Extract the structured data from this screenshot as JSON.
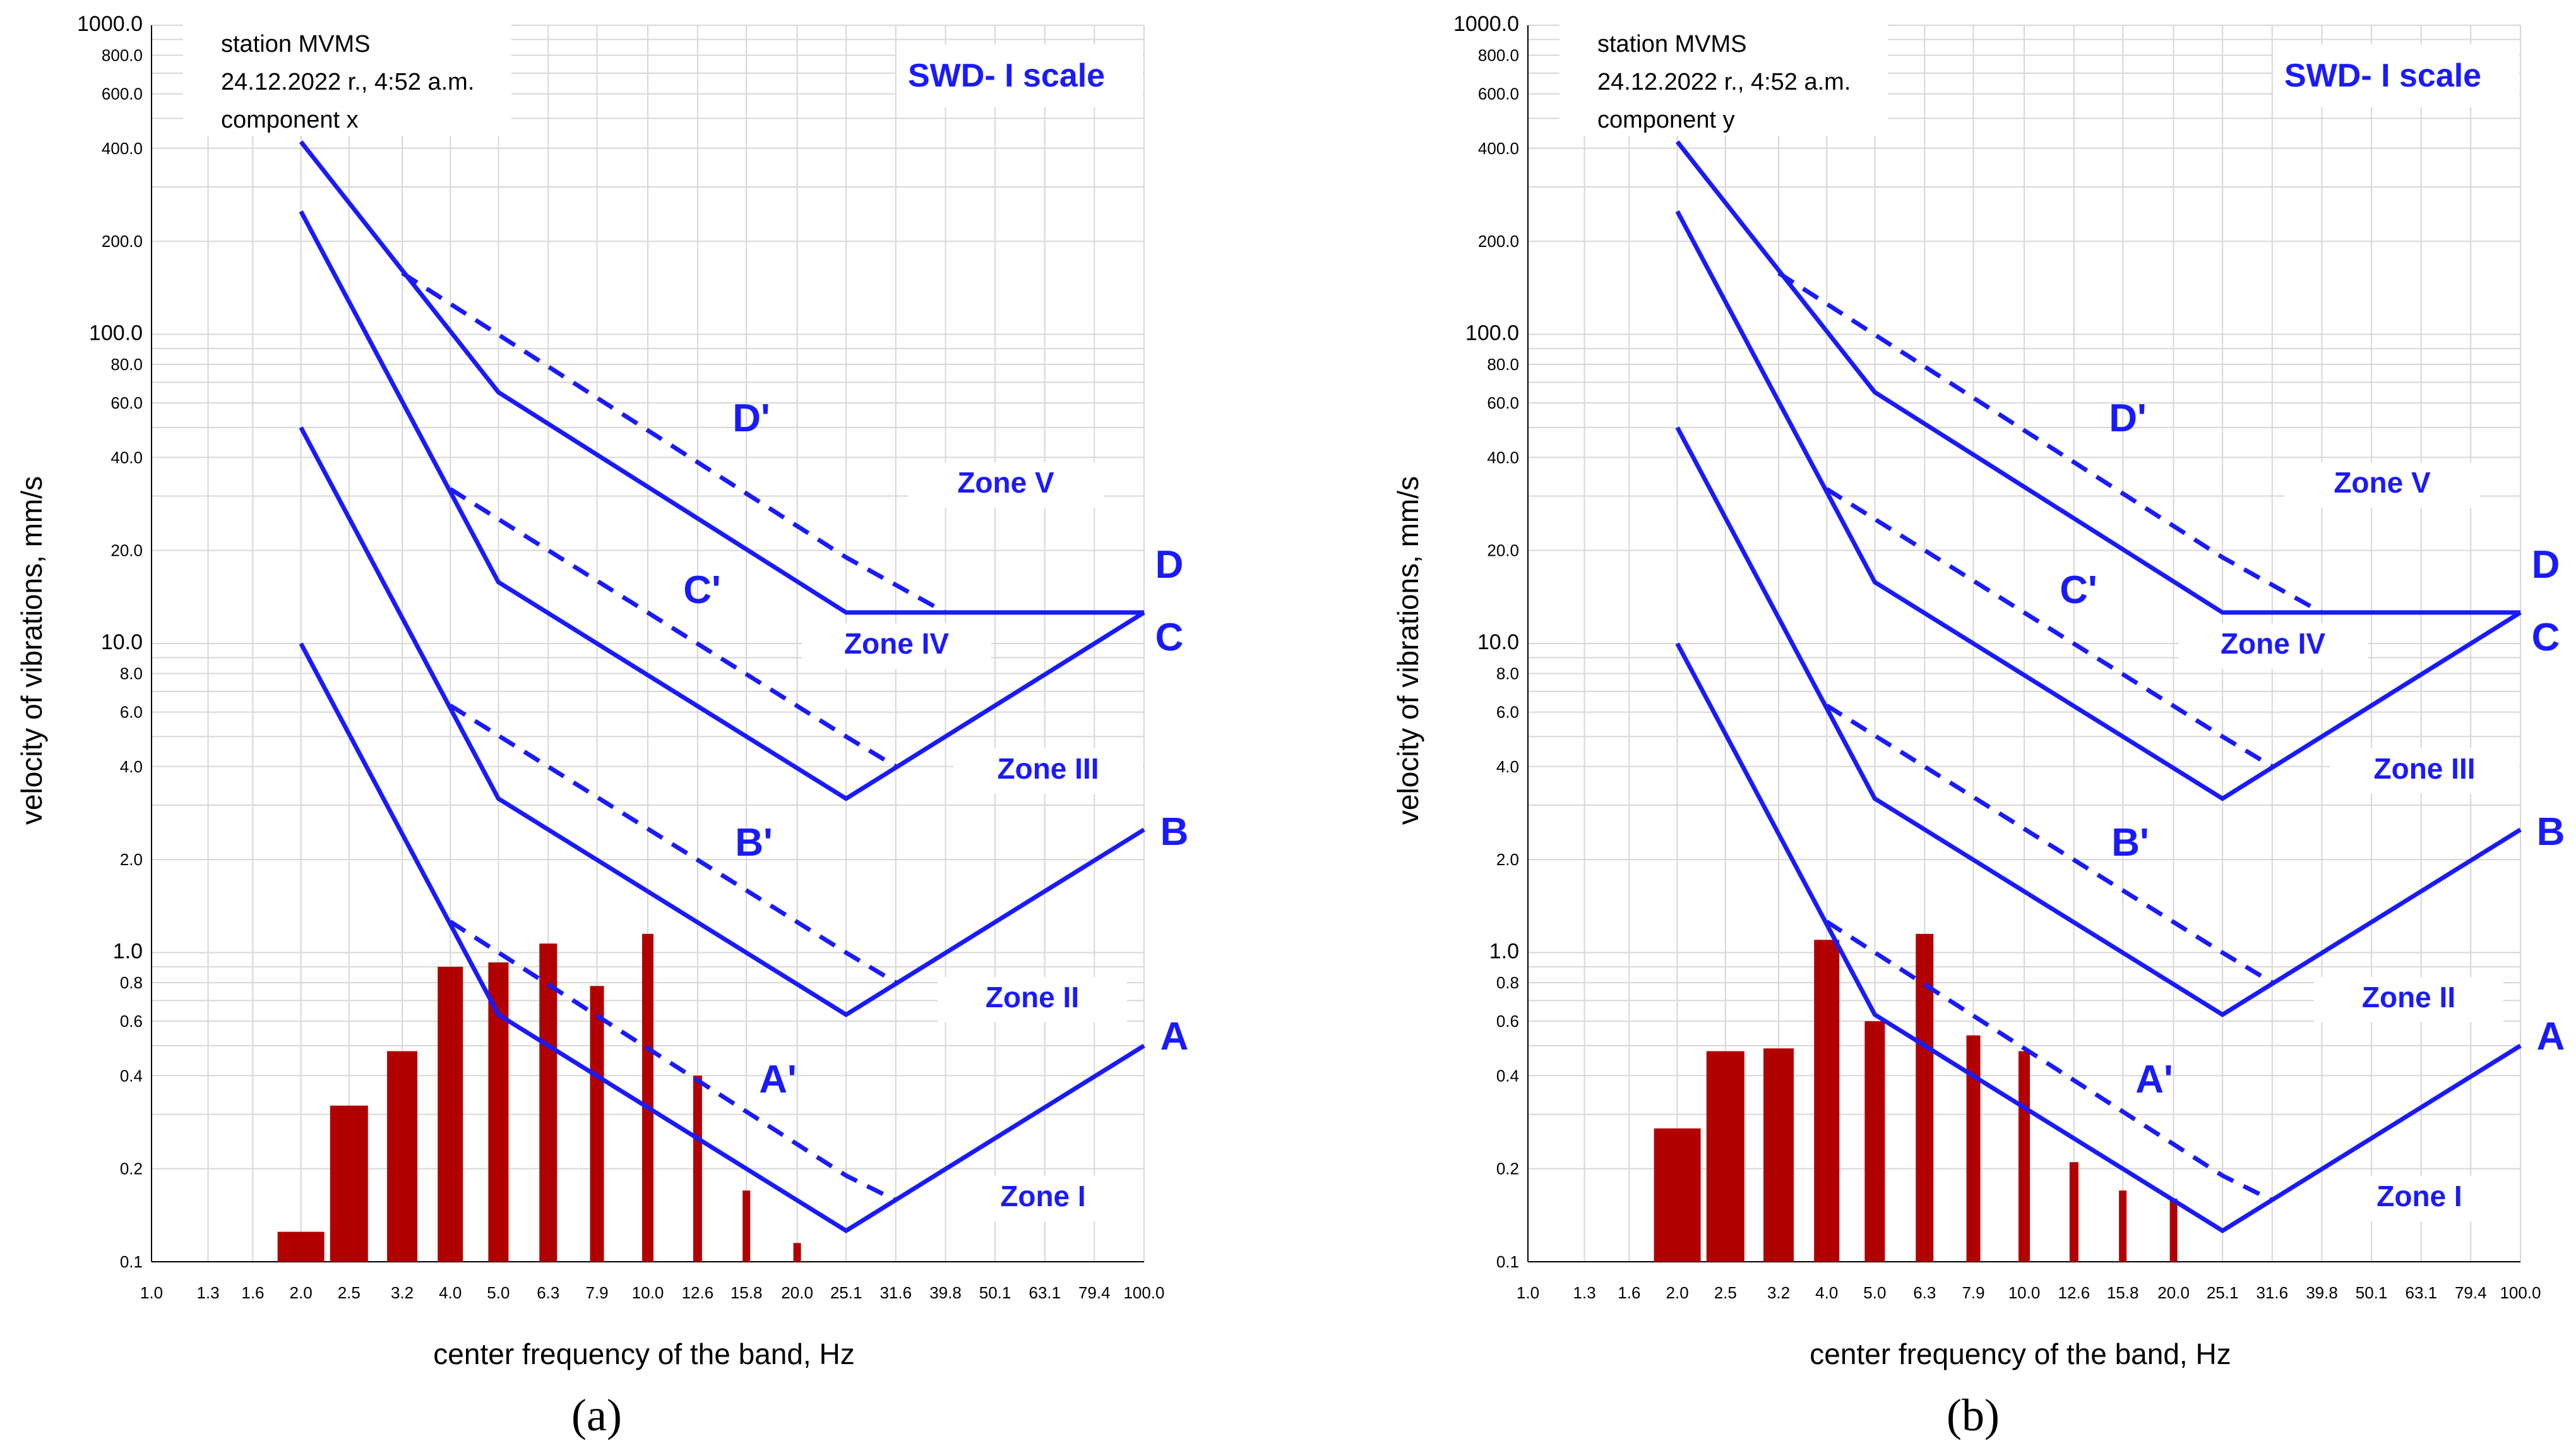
{
  "chart_data": [
    {
      "type": "bar",
      "panel_label": "(a)",
      "title": "SWD- I scale",
      "info": [
        "station MVMS",
        "24.12.2022 r., 4:52 a.m.",
        "component x"
      ],
      "xlabel": "center frequency of the band, Hz",
      "ylabel": "velocity of vibrations, mm/s",
      "x_scale": "log",
      "y_scale": "log",
      "xlim": [
        1.0,
        100.0
      ],
      "ylim": [
        0.1,
        1000.0
      ],
      "grid": true,
      "x_tick_labels": [
        "1.0",
        "1.3",
        "1.6",
        "2.0",
        "2.5",
        "3.2",
        "4.0",
        "5.0",
        "6.3",
        "7.9",
        "10.0",
        "12.6",
        "15.8",
        "20.0",
        "25.1",
        "31.6",
        "39.8",
        "50.1",
        "63.1",
        "79.4",
        "100.0"
      ],
      "y_tick_labels": [
        "0.1",
        "0.2",
        "0.4",
        "0.6",
        "0.8",
        "1.0",
        "2.0",
        "4.0",
        "6.0",
        "8.0",
        "10.0",
        "20.0",
        "40.0",
        "60.0",
        "80.0",
        "100.0",
        "200.0",
        "400.0",
        "600.0",
        "800.0",
        "1000.0"
      ],
      "bars": [
        {
          "x": 2.0,
          "value": 0.125
        },
        {
          "x": 2.5,
          "value": 0.32
        },
        {
          "x": 3.2,
          "value": 0.48
        },
        {
          "x": 4.0,
          "value": 0.9
        },
        {
          "x": 5.0,
          "value": 0.93
        },
        {
          "x": 6.3,
          "value": 1.07
        },
        {
          "x": 7.9,
          "value": 0.78
        },
        {
          "x": 10.0,
          "value": 1.15
        },
        {
          "x": 12.6,
          "value": 0.4
        },
        {
          "x": 15.8,
          "value": 0.17
        },
        {
          "x": 20.0,
          "value": 0.115
        }
      ],
      "limit_lines": [
        {
          "name": "A",
          "points": [
            [
              2.0,
              10.0
            ],
            [
              5.0,
              0.63
            ],
            [
              25.1,
              0.126
            ],
            [
              100.0,
              0.5
            ]
          ]
        },
        {
          "name": "B",
          "points": [
            [
              2.0,
              50.0
            ],
            [
              5.0,
              3.15
            ],
            [
              25.1,
              0.63
            ],
            [
              100.0,
              2.5
            ]
          ]
        },
        {
          "name": "C",
          "points": [
            [
              2.0,
              250.0
            ],
            [
              5.0,
              15.8
            ],
            [
              25.1,
              3.15
            ],
            [
              100.0,
              12.6
            ]
          ]
        },
        {
          "name": "D",
          "points": [
            [
              2.0,
              420.0
            ],
            [
              5.0,
              65.0
            ],
            [
              25.1,
              12.6
            ],
            [
              100.0,
              12.6
            ]
          ]
        },
        {
          "name": "A'",
          "points": [
            [
              4.0,
              1.26
            ],
            [
              25.1,
              0.19
            ],
            [
              31.6,
              0.158
            ]
          ]
        },
        {
          "name": "B'",
          "points": [
            [
              4.0,
              6.3
            ],
            [
              25.1,
              1.0
            ],
            [
              31.6,
              0.8
            ]
          ]
        },
        {
          "name": "C'",
          "points": [
            [
              4.0,
              31.6
            ],
            [
              25.1,
              5.0
            ],
            [
              31.6,
              4.0
            ]
          ]
        },
        {
          "name": "D'",
          "points": [
            [
              3.2,
              158.0
            ],
            [
              25.1,
              19.0
            ],
            [
              39.8,
              12.6
            ]
          ]
        }
      ],
      "curve_labels": [
        "A",
        "B",
        "C",
        "D",
        "A'",
        "B'",
        "C'",
        "D'"
      ],
      "zones": [
        "Zone I",
        "Zone II",
        "Zone III",
        "Zone IV",
        "Zone V"
      ]
    },
    {
      "type": "bar",
      "panel_label": "(b)",
      "title": "SWD- I scale",
      "info": [
        "station MVMS",
        "24.12.2022 r., 4:52 a.m.",
        "component y"
      ],
      "xlabel": "center frequency of the band, Hz",
      "ylabel": "velocity of vibrations, mm/s",
      "x_scale": "log",
      "y_scale": "log",
      "xlim": [
        1.0,
        100.0
      ],
      "ylim": [
        0.1,
        1000.0
      ],
      "grid": true,
      "x_tick_labels": [
        "1.0",
        "1.3",
        "1.6",
        "2.0",
        "2.5",
        "3.2",
        "4.0",
        "5.0",
        "6.3",
        "7.9",
        "10.0",
        "12.6",
        "15.8",
        "20.0",
        "25.1",
        "31.6",
        "39.8",
        "50.1",
        "63.1",
        "79.4",
        "100.0"
      ],
      "y_tick_labels": [
        "0.1",
        "0.2",
        "0.4",
        "0.6",
        "0.8",
        "1.0",
        "2.0",
        "4.0",
        "6.0",
        "8.0",
        "10.0",
        "20.0",
        "40.0",
        "60.0",
        "80.0",
        "100.0",
        "200.0",
        "400.0",
        "600.0",
        "800.0",
        "1000.0"
      ],
      "bars": [
        {
          "x": 2.0,
          "value": 0.27
        },
        {
          "x": 2.5,
          "value": 0.48
        },
        {
          "x": 3.2,
          "value": 0.49
        },
        {
          "x": 4.0,
          "value": 1.1
        },
        {
          "x": 5.0,
          "value": 0.6
        },
        {
          "x": 6.3,
          "value": 1.15
        },
        {
          "x": 7.9,
          "value": 0.54
        },
        {
          "x": 10.0,
          "value": 0.48
        },
        {
          "x": 12.6,
          "value": 0.21
        },
        {
          "x": 15.8,
          "value": 0.17
        },
        {
          "x": 20.0,
          "value": 0.16
        }
      ],
      "limit_lines": [
        {
          "name": "A",
          "points": [
            [
              2.0,
              10.0
            ],
            [
              5.0,
              0.63
            ],
            [
              25.1,
              0.126
            ],
            [
              100.0,
              0.5
            ]
          ]
        },
        {
          "name": "B",
          "points": [
            [
              2.0,
              50.0
            ],
            [
              5.0,
              3.15
            ],
            [
              25.1,
              0.63
            ],
            [
              100.0,
              2.5
            ]
          ]
        },
        {
          "name": "C",
          "points": [
            [
              2.0,
              250.0
            ],
            [
              5.0,
              15.8
            ],
            [
              25.1,
              3.15
            ],
            [
              100.0,
              12.6
            ]
          ]
        },
        {
          "name": "D",
          "points": [
            [
              2.0,
              420.0
            ],
            [
              5.0,
              65.0
            ],
            [
              25.1,
              12.6
            ],
            [
              100.0,
              12.6
            ]
          ]
        },
        {
          "name": "A'",
          "points": [
            [
              4.0,
              1.26
            ],
            [
              25.1,
              0.19
            ],
            [
              31.6,
              0.158
            ]
          ]
        },
        {
          "name": "B'",
          "points": [
            [
              4.0,
              6.3
            ],
            [
              25.1,
              1.0
            ],
            [
              31.6,
              0.8
            ]
          ]
        },
        {
          "name": "C'",
          "points": [
            [
              4.0,
              31.6
            ],
            [
              25.1,
              5.0
            ],
            [
              31.6,
              4.0
            ]
          ]
        },
        {
          "name": "D'",
          "points": [
            [
              3.2,
              158.0
            ],
            [
              25.1,
              19.0
            ],
            [
              39.8,
              12.6
            ]
          ]
        }
      ],
      "curve_labels": [
        "A",
        "B",
        "C",
        "D",
        "A'",
        "B'",
        "C'",
        "D'"
      ],
      "zones": [
        "Zone I",
        "Zone II",
        "Zone III",
        "Zone IV",
        "Zone V"
      ]
    }
  ]
}
